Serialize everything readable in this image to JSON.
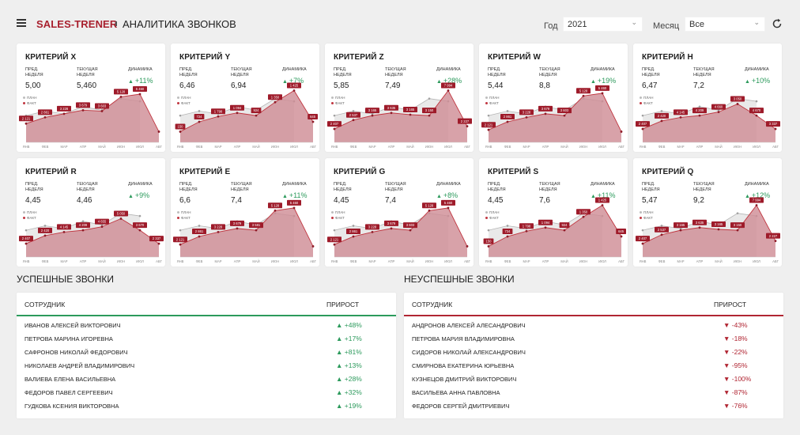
{
  "header": {
    "brand": "SALES-TRENER",
    "title": "АНАЛИТИКА ЗВОНКОВ",
    "year_label": "Год",
    "year_value": "2021",
    "month_label": "Месяц",
    "month_value": "Все"
  },
  "metric_labels": {
    "prev_line1": "ПРЕД.",
    "prev_line2": "НЕДЕЛЯ",
    "cur_line1": "ТЕКУЩАЯ",
    "cur_line2": "НЕДЕЛЯ",
    "dynamics": "ДИНАМИКА",
    "plan": "ПЛАН",
    "fact": "ФАКТ"
  },
  "colors": {
    "brand": "#a8202e",
    "fact": "#c0353f",
    "plan": "#bdbdbd",
    "up": "#2c9a5c",
    "down": "#b02532"
  },
  "cards": [
    {
      "title": "КРИТЕРИЙ X",
      "prev": "5,00",
      "current": "5,460",
      "dynamics": "+11%"
    },
    {
      "title": "КРИТЕРИЙ Y",
      "prev": "6,46",
      "current": "6,94",
      "dynamics": "+7%"
    },
    {
      "title": "КРИТЕРИЙ Z",
      "prev": "5,85",
      "current": "7,49",
      "dynamics": "+28%"
    },
    {
      "title": "КРИТЕРИЙ W",
      "prev": "5,44",
      "current": "8,8",
      "dynamics": "+19%"
    },
    {
      "title": "КРИТЕРИЙ H",
      "prev": "6,47",
      "current": "7,2",
      "dynamics": "+10%"
    },
    {
      "title": "КРИТЕРИЙ R",
      "prev": "4,45",
      "current": "4,46",
      "dynamics": "+9%"
    },
    {
      "title": "КРИТЕРИЙ E",
      "prev": "6,6",
      "current": "7,4",
      "dynamics": "+11%"
    },
    {
      "title": "КРИТЕРИЙ G",
      "prev": "4,45",
      "current": "7,4",
      "dynamics": "+8%"
    },
    {
      "title": "КРИТЕРИЙ S",
      "prev": "4,45",
      "current": "7,6",
      "dynamics": "+11%"
    },
    {
      "title": "КРИТЕРИЙ Q",
      "prev": "5,47",
      "current": "9,2",
      "dynamics": "+12%"
    }
  ],
  "chart_data": [
    {
      "type": "area",
      "months": [
        "ЯНВ",
        "ФЕВ",
        "МАР",
        "АПР",
        "МАЙ",
        "ИЮН",
        "ИЮЛ",
        "АВГ"
      ],
      "plan": [
        3.0,
        3.5,
        3.2,
        4.0,
        3.6,
        4.9,
        4.6,
        null
      ],
      "fact": [
        2.1,
        2.8,
        3.2,
        3.6,
        3.5,
        5.1,
        5.4,
        1.2
      ],
      "fact_labels": [
        "2 121",
        "2 861",
        "3 228",
        "3 679",
        "3 603",
        "5 128",
        "5 460",
        ""
      ]
    },
    {
      "type": "area",
      "months": [
        "ЯНВ",
        "ФЕВ",
        "МАР",
        "АПР",
        "МАЙ",
        "ИЮН",
        "ИЮЛ",
        "АВГ"
      ],
      "plan": [
        3.0,
        3.5,
        3.2,
        4.0,
        3.6,
        4.9,
        4.6,
        null
      ],
      "fact": [
        1.2,
        2.3,
        2.9,
        3.3,
        3.0,
        4.5,
        5.8,
        2.3
      ],
      "fact_labels": [
        "150",
        "724",
        "1 798",
        "1 094",
        "924",
        "1 350",
        "1 425",
        "645"
      ]
    },
    {
      "type": "area",
      "months": [
        "ЯНВ",
        "ФЕВ",
        "МАР",
        "АПР",
        "МАЙ",
        "ИЮН",
        "ИЮЛ",
        "АВГ"
      ],
      "plan": [
        3.0,
        3.5,
        3.2,
        4.0,
        3.6,
        4.9,
        4.6,
        null
      ],
      "fact": [
        1.5,
        2.5,
        3.0,
        3.3,
        3.1,
        3.0,
        5.8,
        1.8
      ],
      "fact_labels": [
        "2 407",
        "2 537",
        "3 165",
        "3 635",
        "3 165",
        "3 150",
        "7 994",
        "2 227"
      ]
    },
    {
      "type": "area",
      "months": [
        "ЯНВ",
        "ФЕВ",
        "МАР",
        "АПР",
        "МАЙ",
        "ИЮН",
        "ИЮЛ",
        "АВГ"
      ],
      "plan": [
        3.0,
        3.5,
        3.2,
        4.0,
        3.6,
        4.9,
        4.6,
        null
      ],
      "fact": [
        1.4,
        2.3,
        2.8,
        3.2,
        3.0,
        5.2,
        5.5,
        1.2
      ],
      "fact_labels": [
        "2 121",
        "2 861",
        "3 228",
        "3 679",
        "3 603",
        "5 128",
        "5 460",
        ""
      ]
    },
    {
      "type": "area",
      "months": [
        "ЯНВ",
        "ФЕВ",
        "МАР",
        "АПР",
        "МАЙ",
        "ИЮН",
        "ИЮЛ",
        "АВГ"
      ],
      "plan": [
        3.0,
        3.5,
        3.2,
        4.0,
        3.6,
        4.9,
        4.6,
        null
      ],
      "fact": [
        1.5,
        2.4,
        2.8,
        3.0,
        3.4,
        4.3,
        3.0,
        1.5
      ],
      "fact_labels": [
        "2 407",
        "2 420",
        "4 145",
        "4 209",
        "4 660",
        "3 050",
        "4 670",
        "3 337"
      ]
    },
    {
      "type": "area",
      "months": [
        "ЯНВ",
        "ФЕВ",
        "МАР",
        "АПР",
        "МАЙ",
        "ИЮН",
        "ИЮЛ",
        "АВГ"
      ],
      "plan": [
        3.0,
        3.5,
        3.2,
        4.0,
        3.6,
        4.9,
        4.6,
        null
      ],
      "fact": [
        1.5,
        2.4,
        2.8,
        3.0,
        3.4,
        4.3,
        3.0,
        1.5
      ],
      "fact_labels": [
        "2 407",
        "2 420",
        "4 145",
        "4 209",
        "4 655",
        "5 050",
        "3 670",
        "2 337"
      ]
    },
    {
      "type": "area",
      "months": [
        "ЯНВ",
        "ФЕВ",
        "МАР",
        "АПР",
        "МАЙ",
        "ИЮН",
        "ИЮЛ",
        "АВГ"
      ],
      "plan": [
        3.0,
        3.5,
        3.2,
        4.0,
        3.6,
        4.9,
        4.6,
        null
      ],
      "fact": [
        1.4,
        2.3,
        2.8,
        3.2,
        3.0,
        5.2,
        5.5,
        1.2
      ],
      "fact_labels": [
        "2 121",
        "2 861",
        "3 228",
        "3 679",
        "3 581",
        "5 128",
        "5 460",
        ""
      ]
    },
    {
      "type": "area",
      "months": [
        "ЯНВ",
        "ФЕВ",
        "МАР",
        "АПР",
        "МАЙ",
        "ИЮН",
        "ИЮЛ",
        "АВГ"
      ],
      "plan": [
        3.0,
        3.5,
        3.2,
        4.0,
        3.6,
        4.9,
        4.6,
        null
      ],
      "fact": [
        1.4,
        2.3,
        2.8,
        3.2,
        3.0,
        5.2,
        5.5,
        1.2
      ],
      "fact_labels": [
        "2 121",
        "2 861",
        "3 228",
        "3 679",
        "3 603",
        "5 128",
        "5 460",
        ""
      ]
    },
    {
      "type": "area",
      "months": [
        "ЯНВ",
        "ФЕВ",
        "МАР",
        "АПР",
        "МАЙ",
        "ИЮН",
        "ИЮЛ",
        "АВГ"
      ],
      "plan": [
        3.0,
        3.5,
        3.2,
        4.0,
        3.6,
        4.9,
        4.6,
        null
      ],
      "fact": [
        1.2,
        2.3,
        2.9,
        3.3,
        3.0,
        4.5,
        5.8,
        2.3
      ],
      "fact_labels": [
        "150",
        "724",
        "1 798",
        "1 094",
        "924",
        "1 350",
        "1 425",
        "645"
      ]
    },
    {
      "type": "area",
      "months": [
        "ЯНВ",
        "ФЕВ",
        "МАР",
        "АПР",
        "МАЙ",
        "ИЮН",
        "ИЮЛ",
        "АВГ"
      ],
      "plan": [
        3.0,
        3.5,
        3.2,
        4.0,
        3.6,
        4.9,
        4.6,
        null
      ],
      "fact": [
        1.5,
        2.5,
        3.0,
        3.3,
        3.1,
        3.0,
        5.8,
        1.8
      ],
      "fact_labels": [
        "2 407",
        "2 537",
        "3 165",
        "3 635",
        "3 165",
        "3 150",
        "7 994",
        "2 227"
      ]
    }
  ],
  "success": {
    "title": "УСПЕШНЫЕ ЗВОНКИ",
    "col_employee": "СОТРУДНИК",
    "col_growth": "ПРИРОСТ",
    "rows": [
      {
        "name": "ИВАНОВ АЛЕКСЕЙ ВИКТОРОВИЧ",
        "growth": "▲ +48%"
      },
      {
        "name": "ПЕТРОВА МАРИНА ИГОРЕВНА",
        "growth": "▲ +17%"
      },
      {
        "name": "САФРОНОВ НИКОЛАЙ ФЕДОРОВИЧ",
        "growth": "▲ +81%"
      },
      {
        "name": "НИКОЛАЕВ АНДРЕЙ ВЛАДИМИРОВИЧ",
        "growth": "▲ +13%"
      },
      {
        "name": "ВАЛИЕВА ЕЛЕНА ВАСИЛЬЕВНА",
        "growth": "▲ +28%"
      },
      {
        "name": "ФЕДОРОВ ПАВЕЛ СЕРГЕЕВИЧ",
        "growth": "▲ +32%"
      },
      {
        "name": "ГУДКОВА КСЕНИЯ ВИКТОРОВНА",
        "growth": "▲ +19%"
      }
    ]
  },
  "failed": {
    "title": "НЕУСПЕШНЫЕ ЗВОНКИ",
    "col_employee": "СОТРУДНИК",
    "col_growth": "ПРИРОСТ",
    "rows": [
      {
        "name": "АНДРОНОВ АЛЕКСЕЙ АЛЕСАНДРОВИЧ",
        "growth": "▼ -43%"
      },
      {
        "name": "ПЕТРОВА МАРИЯ ВЛАДИМИРОВНА",
        "growth": "▼ -18%"
      },
      {
        "name": "СИДОРОВ НИКОЛАЙ АЛЕКСАНДРОВИЧ",
        "growth": "▼ -22%"
      },
      {
        "name": "СМИРНОВА ЕКАТЕРИНА ЮРЬЕВНА",
        "growth": "▼ -95%"
      },
      {
        "name": "КУЗНЕЦОВ ДМИТРИЙ ВИКТОРОВИЧ",
        "growth": "▼ -100%"
      },
      {
        "name": "ВАСИЛЬЕВА АННА ПАВЛОВНА",
        "growth": "▼ -87%"
      },
      {
        "name": "ФЕДОРОВ СЕРГЕЙ ДМИТРИЕВИЧ",
        "growth": "▼ -76%"
      }
    ]
  }
}
